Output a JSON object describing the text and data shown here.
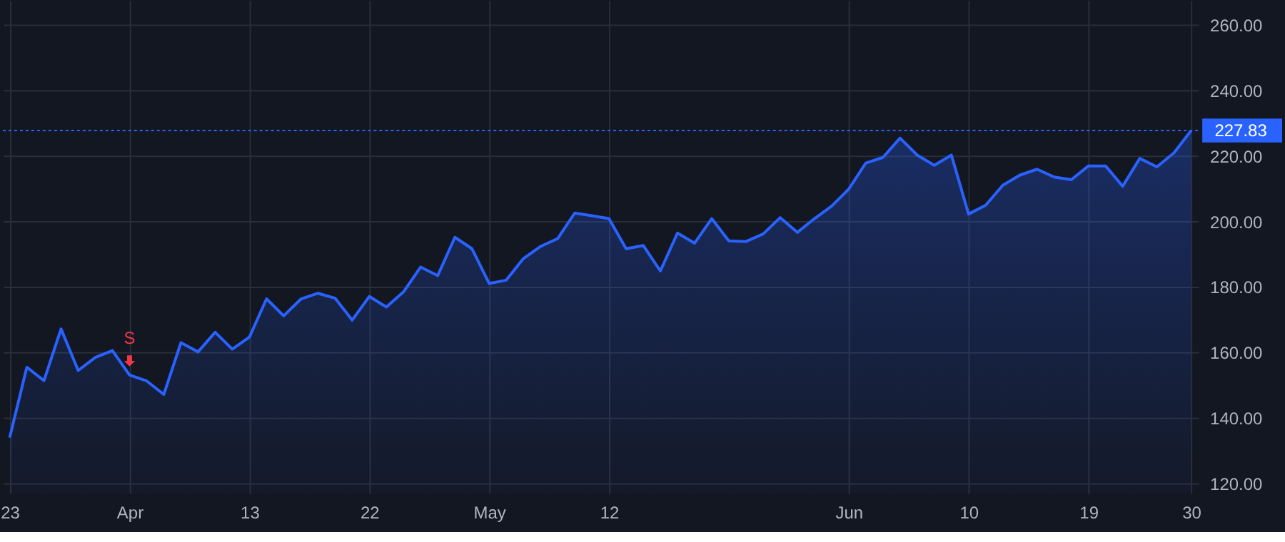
{
  "chart_data": {
    "type": "area",
    "categories": [
      "23",
      null,
      null,
      null,
      null,
      null,
      null,
      "Apr",
      null,
      null,
      null,
      null,
      null,
      null,
      "13",
      null,
      null,
      null,
      null,
      null,
      null,
      "22",
      null,
      null,
      null,
      null,
      null,
      null,
      "May",
      null,
      null,
      null,
      null,
      null,
      null,
      "12",
      null,
      null,
      null,
      null,
      null,
      null,
      null,
      null,
      null,
      null,
      null,
      null,
      null,
      "Jun",
      null,
      null,
      null,
      null,
      null,
      null,
      "10",
      null,
      null,
      null,
      null,
      null,
      null,
      "19",
      null,
      null,
      null,
      null,
      null,
      "30"
    ],
    "series": [
      {
        "color": "#2962ff",
        "values": [
          134.0,
          155.5,
          151.4,
          167.2,
          154.5,
          158.5,
          160.6,
          153.1,
          151.3,
          147.2,
          163.0,
          160.2,
          166.2,
          161.0,
          164.7,
          176.4,
          171.2,
          176.3,
          178.1,
          176.6,
          169.9,
          177.1,
          173.9,
          178.5,
          186.1,
          183.5,
          195.2,
          191.7,
          181.1,
          182.1,
          188.7,
          192.4,
          194.8,
          202.6,
          201.8,
          200.9,
          191.7,
          192.7,
          184.9,
          196.5,
          193.4,
          200.9,
          194.1,
          193.9,
          196.2,
          201.2,
          196.7,
          200.9,
          204.7,
          209.9,
          217.9,
          219.6,
          225.5,
          220.3,
          217.2,
          220.3,
          202.3,
          205.0,
          211.1,
          214.2,
          216.0,
          213.6,
          212.8,
          217.0,
          217.0,
          210.8,
          219.3,
          216.7,
          221.0,
          227.83
        ]
      }
    ],
    "ylim": [
      117,
      267.6
    ],
    "yticks": [
      {
        "value": 120,
        "label": "120.00"
      },
      {
        "value": 140,
        "label": "140.00"
      },
      {
        "value": 160,
        "label": "160.00"
      },
      {
        "value": 180,
        "label": "180.00"
      },
      {
        "value": 200,
        "label": "200.00"
      },
      {
        "value": 220,
        "label": "220.00"
      },
      {
        "value": 240,
        "label": "240.00"
      },
      {
        "value": 260,
        "label": "260.00"
      }
    ],
    "ref_lines": [
      {
        "axis": "y",
        "value": 227.83,
        "label": "227.83",
        "color": "#2962ff",
        "line_style": "dashed"
      }
    ],
    "annotations": [
      {
        "text": "S",
        "x": "Apr",
        "y": 153.1
      }
    ],
    "grid": true
  }
}
